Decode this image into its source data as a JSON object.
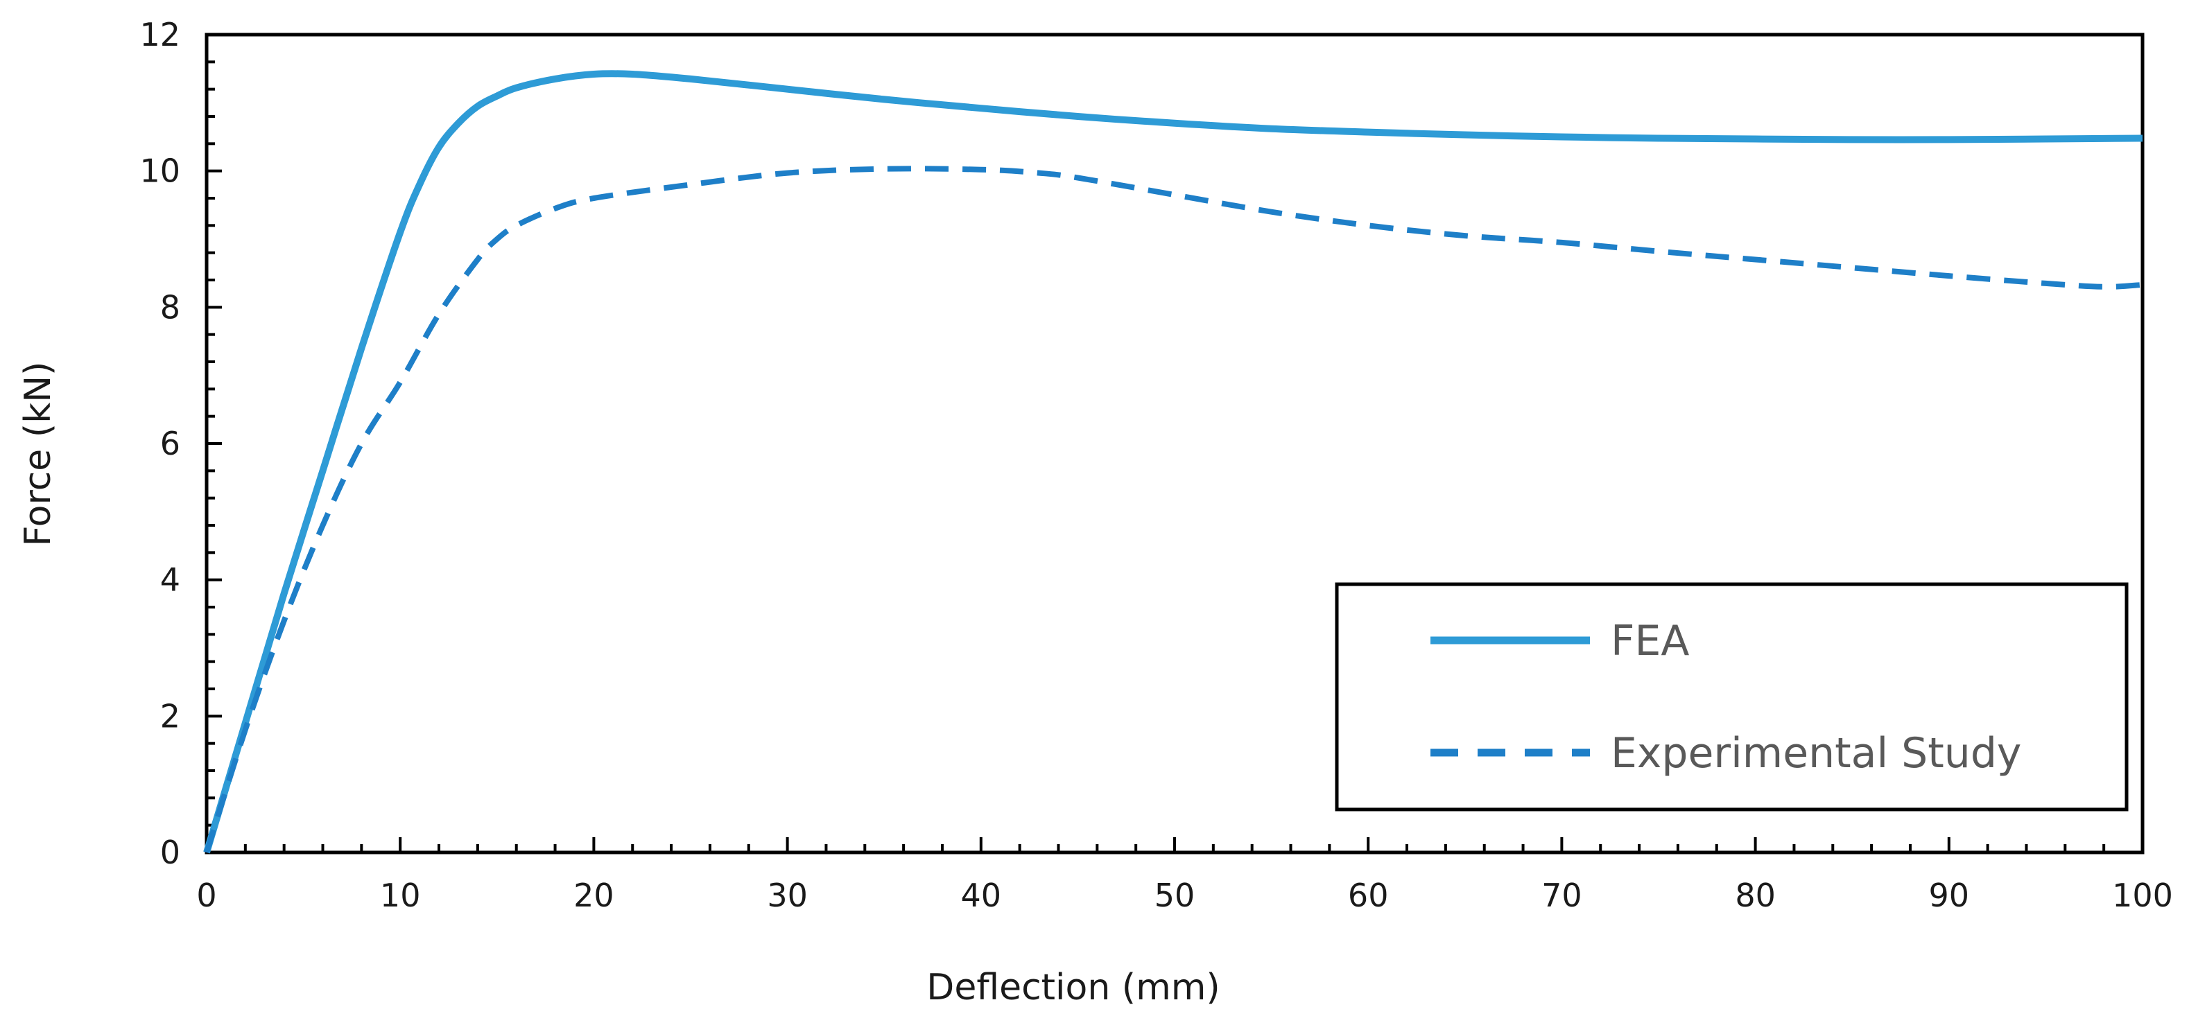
{
  "chart_data": {
    "type": "line",
    "title": "",
    "xlabel": "Deflection (mm)",
    "ylabel": "Force (kN)",
    "xlim": [
      0,
      100
    ],
    "ylim": [
      0,
      12
    ],
    "x_ticks": [
      0,
      10,
      20,
      30,
      40,
      50,
      60,
      70,
      80,
      90,
      100
    ],
    "y_ticks": [
      0,
      2,
      4,
      6,
      8,
      10,
      12
    ],
    "x_minor_step": 2,
    "y_minor_step": 0.4,
    "grid": false,
    "legend_position": "bottom-right",
    "series": [
      {
        "name": "FEA",
        "style": "solid",
        "color": "#2e9bd6",
        "x": [
          0,
          2,
          4,
          6,
          8,
          10,
          11,
          12,
          13,
          14,
          15,
          16,
          18,
          20,
          22,
          25,
          30,
          35,
          40,
          45,
          50,
          55,
          60,
          65,
          70,
          75,
          80,
          85,
          90,
          95,
          100
        ],
        "y": [
          0,
          1.9,
          3.8,
          5.6,
          7.4,
          9.1,
          9.8,
          10.35,
          10.7,
          10.95,
          11.1,
          11.22,
          11.35,
          11.42,
          11.42,
          11.35,
          11.2,
          11.05,
          10.92,
          10.8,
          10.7,
          10.62,
          10.57,
          10.53,
          10.5,
          10.48,
          10.47,
          10.46,
          10.46,
          10.47,
          10.48
        ]
      },
      {
        "name": "Experimental Study",
        "style": "dashed",
        "color": "#1e7fc8",
        "x": [
          0,
          2,
          4,
          6,
          8,
          10,
          12,
          14,
          15,
          16,
          18,
          20,
          25,
          30,
          35,
          40,
          43,
          45,
          50,
          55,
          60,
          65,
          70,
          75,
          80,
          85,
          90,
          95,
          98,
          100
        ],
        "y": [
          0,
          1.8,
          3.4,
          4.8,
          6.0,
          6.9,
          7.9,
          8.7,
          9.0,
          9.2,
          9.45,
          9.6,
          9.8,
          9.97,
          10.03,
          10.02,
          9.97,
          9.9,
          9.65,
          9.4,
          9.2,
          9.05,
          8.95,
          8.82,
          8.7,
          8.58,
          8.46,
          8.35,
          8.3,
          8.33
        ]
      }
    ]
  }
}
